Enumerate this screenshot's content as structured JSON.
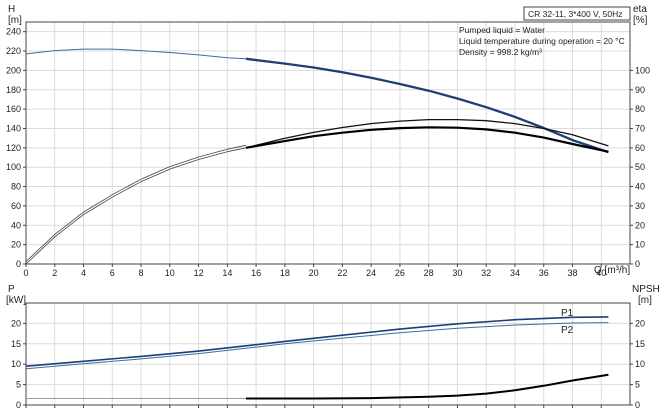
{
  "chart_data": [
    {
      "type": "line",
      "panel": "upper",
      "legend_box": {
        "title": "CR 32-11, 3*400 V, 50Hz"
      },
      "annotations": [
        "Pumped liquid = Water",
        "Liquid temperature during operation = 20 °C",
        "Density = 998.2 kg/m³"
      ],
      "xlabel": "Q [m³/h]",
      "ylabel_left": [
        "H",
        "[m]"
      ],
      "ylabel_right": [
        "eta",
        "[%]"
      ],
      "xlim": [
        0,
        42
      ],
      "ylim_left": [
        0,
        250
      ],
      "ylim_right": [
        0,
        125
      ],
      "x_ticks": [
        0,
        2,
        4,
        6,
        8,
        10,
        12,
        14,
        16,
        18,
        20,
        22,
        24,
        26,
        28,
        30,
        32,
        34,
        36,
        38,
        40
      ],
      "y_ticks_left": [
        0,
        20,
        40,
        60,
        80,
        100,
        120,
        140,
        160,
        180,
        200,
        220,
        240
      ],
      "y_ticks_right": [
        0,
        10,
        20,
        30,
        40,
        50,
        60,
        70,
        80,
        90,
        100
      ],
      "grid": true,
      "series": [
        {
          "axis": "left",
          "style": "thin-blue",
          "x": [
            0,
            2,
            4,
            6,
            8,
            10,
            12,
            14,
            15.3
          ],
          "y": [
            217,
            220.5,
            222,
            222,
            220.5,
            218.5,
            216,
            213,
            212
          ]
        },
        {
          "axis": "left",
          "style": "bold-blue",
          "x": [
            15.3,
            18,
            20,
            22,
            24,
            26,
            28,
            30,
            32,
            34,
            36,
            38,
            40.5
          ],
          "y": [
            212,
            207,
            203,
            198,
            192.5,
            186,
            179,
            171,
            162,
            152,
            140.5,
            128,
            115.5
          ]
        },
        {
          "axis": "right",
          "style": "thin-double",
          "x": [
            0,
            2,
            4,
            6,
            8,
            10,
            12,
            14,
            15.3
          ],
          "y": [
            0,
            14,
            25.5,
            34.5,
            42.5,
            49,
            54,
            58,
            60
          ]
        },
        {
          "axis": "right",
          "style": "double",
          "x": [
            15.3,
            18,
            20,
            22,
            24,
            26,
            28,
            30,
            32,
            34,
            36,
            38,
            40.5
          ],
          "y": [
            60,
            65,
            68,
            70.5,
            72.5,
            73.8,
            74.6,
            74.6,
            74,
            72.5,
            70,
            66.8,
            61
          ]
        },
        {
          "axis": "right",
          "style": "bold-black",
          "x": [
            15.3,
            18,
            20,
            22,
            24,
            26,
            28,
            30,
            32,
            34,
            36,
            38,
            40.5
          ],
          "y": [
            60,
            63.5,
            66,
            67.8,
            69.3,
            70.2,
            70.6,
            70.4,
            69.5,
            67.8,
            65.3,
            62,
            58
          ]
        }
      ]
    },
    {
      "type": "line",
      "panel": "lower",
      "ylabel_left": [
        "P",
        "[kW]"
      ],
      "ylabel_right": [
        "NPSH",
        "[m]"
      ],
      "xlim": [
        0,
        42
      ],
      "ylim_left": [
        0,
        25
      ],
      "ylim_right": [
        0,
        25
      ],
      "y_ticks_left": [
        0,
        5,
        10,
        15,
        20
      ],
      "y_ticks_right": [
        0,
        5,
        10,
        15,
        20
      ],
      "grid": true,
      "series": [
        {
          "name": "P1",
          "axis": "left",
          "style": "p1",
          "x": [
            0,
            4,
            8,
            12,
            15.3,
            18,
            22,
            26,
            30,
            34,
            38,
            40.5
          ],
          "y": [
            9.5,
            10.7,
            11.9,
            13.2,
            14.5,
            15.6,
            17.1,
            18.6,
            19.9,
            20.9,
            21.5,
            21.6
          ]
        },
        {
          "name": "P2",
          "axis": "left",
          "style": "p2",
          "x": [
            0,
            4,
            8,
            12,
            15.3,
            18,
            22,
            26,
            30,
            34,
            38,
            40.5
          ],
          "y": [
            8.9,
            10.1,
            11.3,
            12.6,
            13.9,
            15,
            16.4,
            17.7,
            18.8,
            19.6,
            20.1,
            20.2
          ]
        },
        {
          "axis": "right",
          "style": "npsh",
          "x": [
            15.3,
            20,
            24,
            28,
            30,
            32,
            34,
            36,
            38,
            40.5
          ],
          "y": [
            1.6,
            1.6,
            1.7,
            2,
            2.3,
            2.8,
            3.6,
            4.7,
            6,
            7.4
          ]
        },
        {
          "axis": "right",
          "style": "base",
          "x": [
            0,
            15.3
          ],
          "y": [
            1.6,
            1.6
          ]
        }
      ]
    }
  ]
}
